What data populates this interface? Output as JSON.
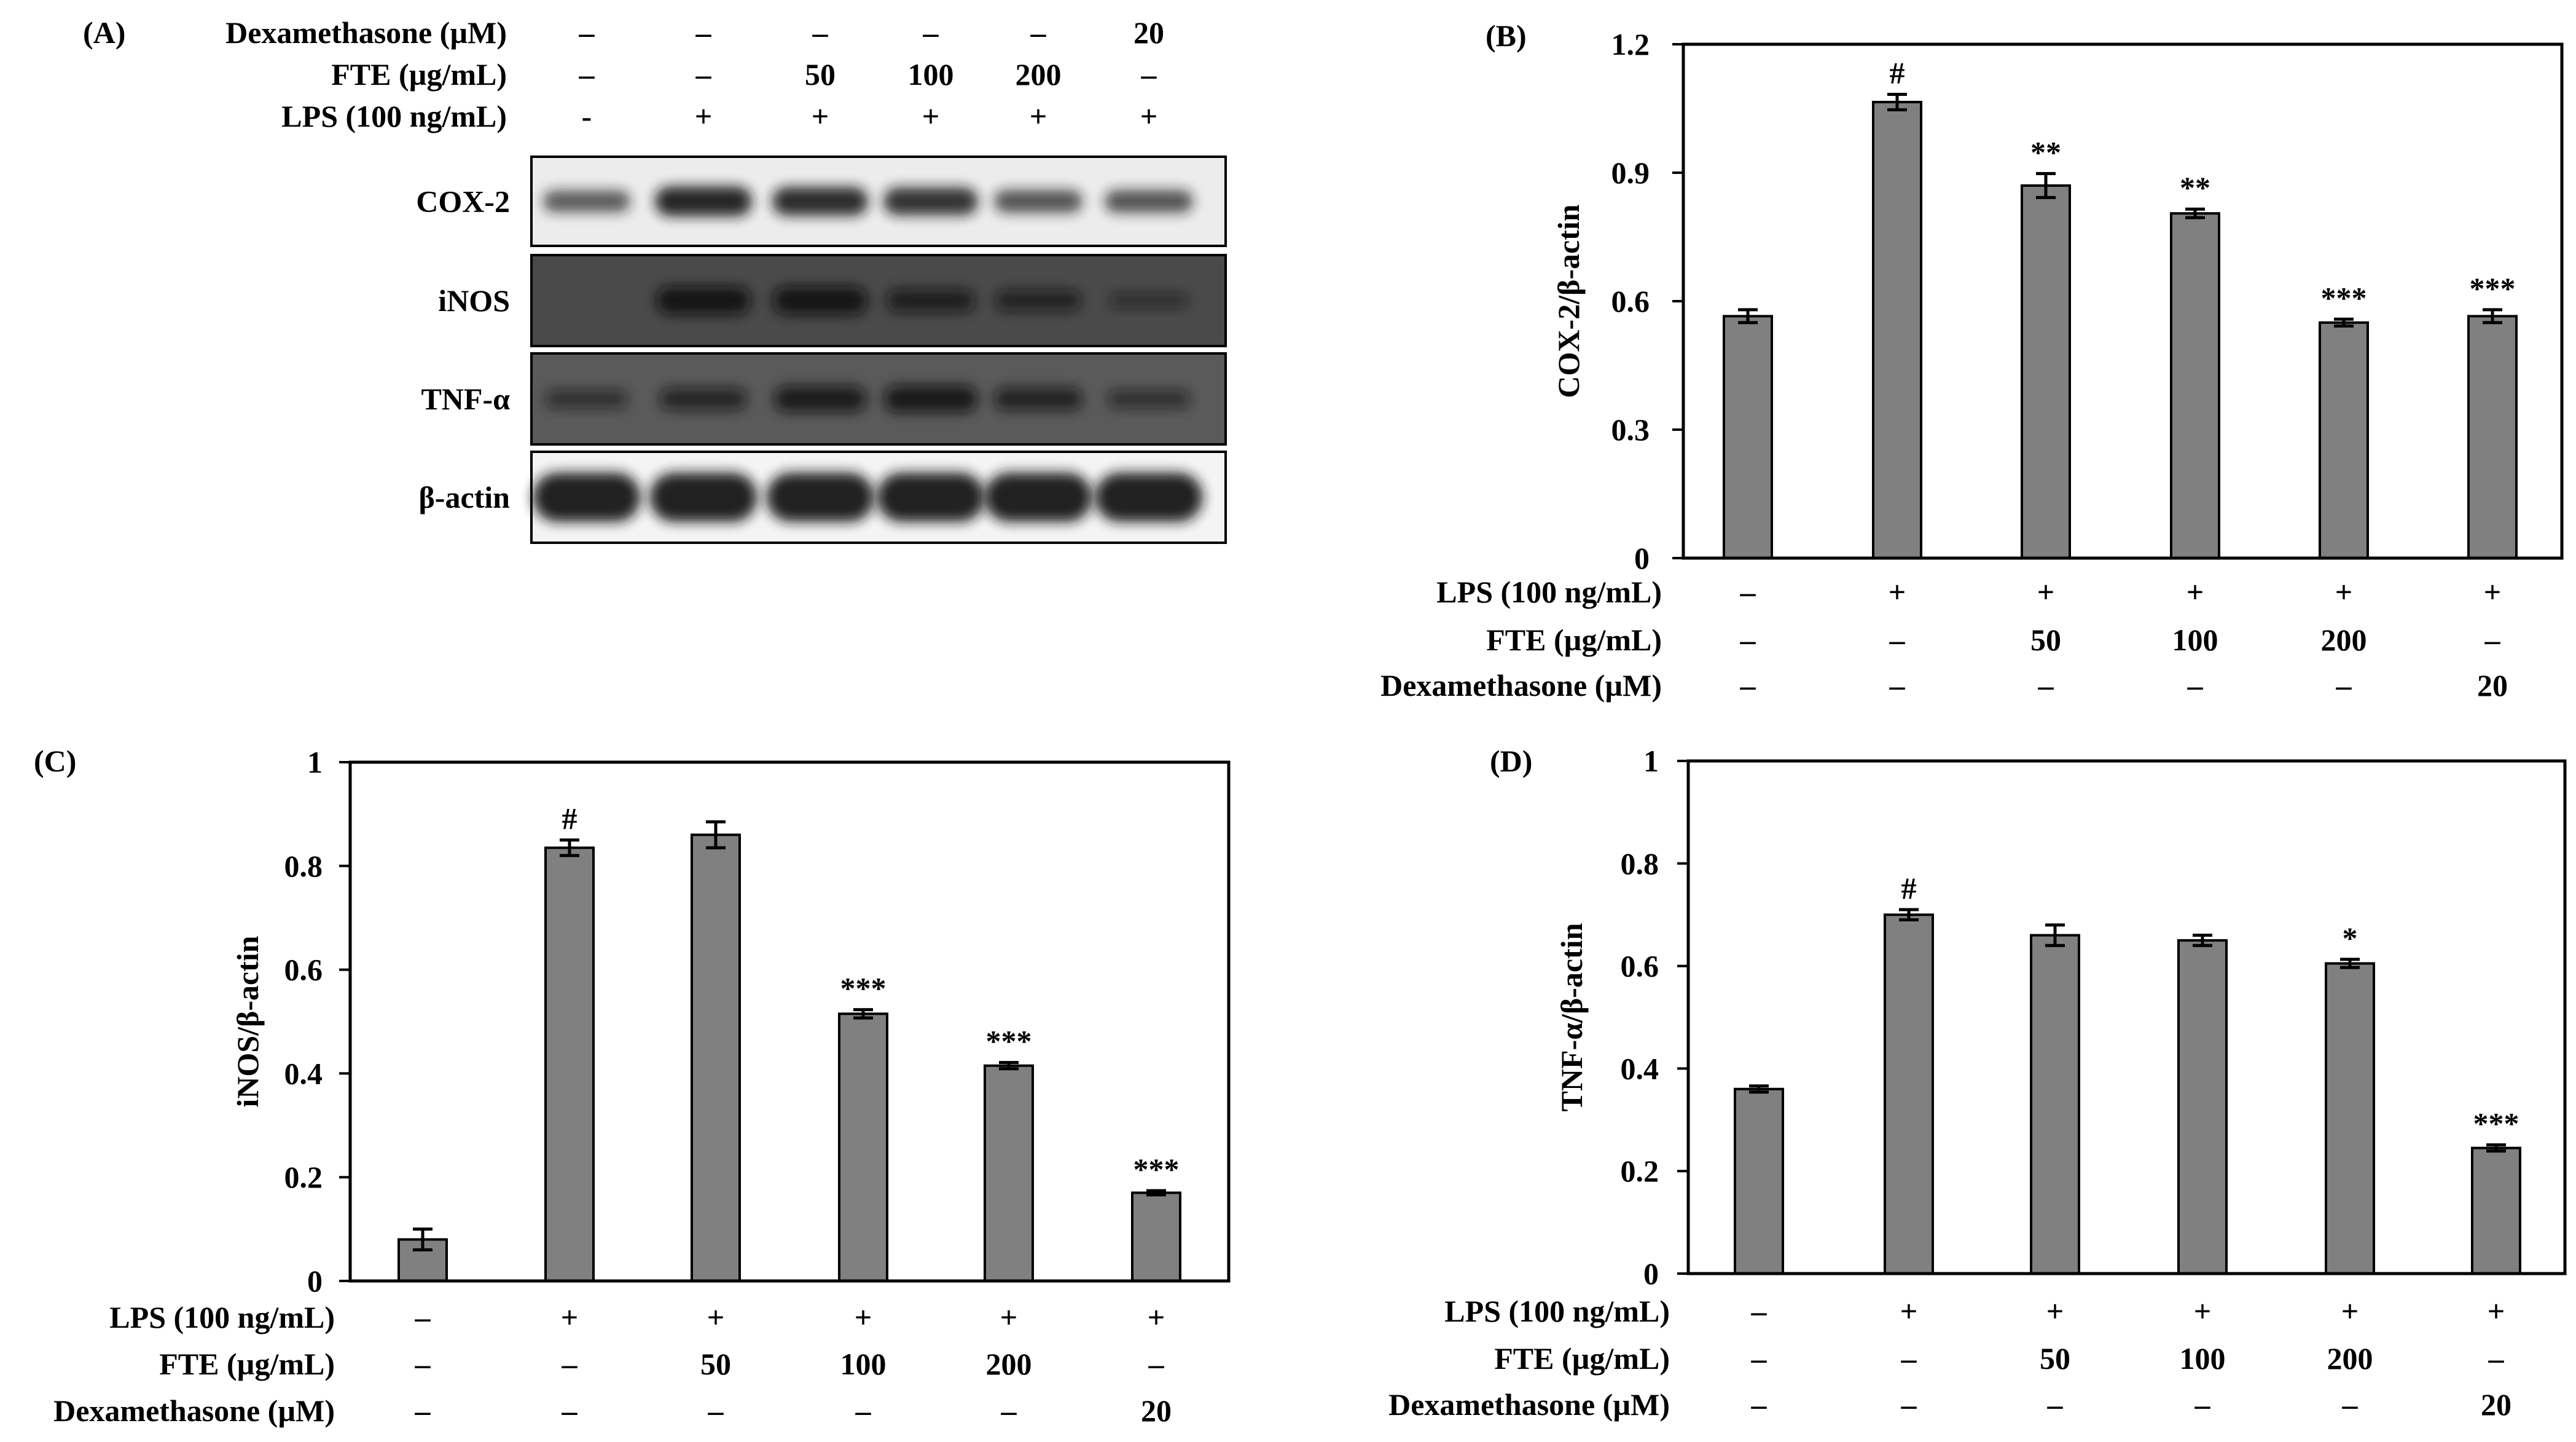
{
  "colors": {
    "bar": "#808080",
    "axis": "#000000",
    "background": "#ffffff"
  },
  "panelA": {
    "label": "(A)",
    "treatments": [
      {
        "name": "Dexamethasone (µM)",
        "values": [
          "–",
          "–",
          "–",
          "–",
          "–",
          "20"
        ]
      },
      {
        "name": "FTE (µg/mL)",
        "values": [
          "–",
          "–",
          "50",
          "100",
          "200",
          "–"
        ]
      },
      {
        "name": "LPS (100 ng/mL)",
        "values": [
          "-",
          "+",
          "+",
          "+",
          "+",
          "+"
        ]
      }
    ],
    "blots": [
      {
        "name": "COX-2",
        "bands": [
          0.55,
          0.95,
          0.9,
          0.85,
          0.6,
          0.6
        ],
        "bg": "#ececec"
      },
      {
        "name": "iNOS",
        "bands": [
          0.0,
          0.85,
          0.85,
          0.6,
          0.5,
          0.2
        ],
        "bg": "#4a4a4a"
      },
      {
        "name": "TNF-α",
        "bands": [
          0.35,
          0.55,
          0.75,
          0.8,
          0.6,
          0.35
        ],
        "bg": "#5a5a5a"
      },
      {
        "name": "β-actin",
        "bands": [
          1.0,
          1.0,
          1.0,
          1.0,
          1.0,
          1.0
        ],
        "bg": "#f4f4f4"
      }
    ]
  },
  "chart_data": [
    {
      "panel": "(B)",
      "type": "bar",
      "ylabel": "COX-2/β-actin",
      "ylim": [
        0,
        1.2
      ],
      "yticks": [
        0,
        0.3,
        0.6,
        0.9,
        1.2
      ],
      "ytick_labels": [
        "0",
        "0.3",
        "0.6",
        "0.9",
        "1.2"
      ],
      "values": [
        0.565,
        1.065,
        0.87,
        0.805,
        0.55,
        0.565
      ],
      "errors": [
        0.015,
        0.018,
        0.028,
        0.01,
        0.008,
        0.015
      ],
      "annotations": [
        "",
        "#",
        "**",
        "**",
        "***",
        "***"
      ],
      "rows": [
        {
          "name": "LPS (100 ng/mL)",
          "values": [
            "–",
            "+",
            "+",
            "+",
            "+",
            "+"
          ]
        },
        {
          "name": "FTE (µg/mL)",
          "values": [
            "–",
            "–",
            "50",
            "100",
            "200",
            "–"
          ]
        },
        {
          "name": "Dexamethasone (µM)",
          "values": [
            "–",
            "–",
            "–",
            "–",
            "–",
            "20"
          ]
        }
      ]
    },
    {
      "panel": "(C)",
      "type": "bar",
      "ylabel": "iNOS/β-actin",
      "ylim": [
        0,
        1
      ],
      "yticks": [
        0,
        0.2,
        0.4,
        0.6,
        0.8,
        1
      ],
      "ytick_labels": [
        "0",
        "0.2",
        "0.4",
        "0.6",
        "0.8",
        "1"
      ],
      "values": [
        0.08,
        0.835,
        0.86,
        0.515,
        0.415,
        0.17
      ],
      "errors": [
        0.02,
        0.015,
        0.025,
        0.008,
        0.006,
        0.004
      ],
      "annotations": [
        "",
        "#",
        "",
        "***",
        "***",
        "***"
      ],
      "rows": [
        {
          "name": "LPS (100 ng/mL)",
          "values": [
            "–",
            "+",
            "+",
            "+",
            "+",
            "+"
          ]
        },
        {
          "name": "FTE (µg/mL)",
          "values": [
            "–",
            "–",
            "50",
            "100",
            "200",
            "–"
          ]
        },
        {
          "name": "Dexamethasone (µM)",
          "values": [
            "–",
            "–",
            "–",
            "–",
            "–",
            "20"
          ]
        }
      ]
    },
    {
      "panel": "(D)",
      "type": "bar",
      "ylabel": "TNF-α/β-actin",
      "ylim": [
        0,
        1
      ],
      "yticks": [
        0,
        0.2,
        0.4,
        0.6,
        0.8,
        1
      ],
      "ytick_labels": [
        "0",
        "0.2",
        "0.4",
        "0.6",
        "0.8",
        "1"
      ],
      "values": [
        0.36,
        0.7,
        0.66,
        0.65,
        0.605,
        0.245
      ],
      "errors": [
        0.006,
        0.01,
        0.02,
        0.01,
        0.008,
        0.006
      ],
      "annotations": [
        "",
        "#",
        "",
        "",
        "*",
        "***"
      ],
      "rows": [
        {
          "name": "LPS (100 ng/mL)",
          "values": [
            "–",
            "+",
            "+",
            "+",
            "+",
            "+"
          ]
        },
        {
          "name": "FTE (µg/mL)",
          "values": [
            "–",
            "–",
            "50",
            "100",
            "200",
            "–"
          ]
        },
        {
          "name": "Dexamethasone (µM)",
          "values": [
            "–",
            "–",
            "–",
            "–",
            "–",
            "20"
          ]
        }
      ]
    }
  ]
}
